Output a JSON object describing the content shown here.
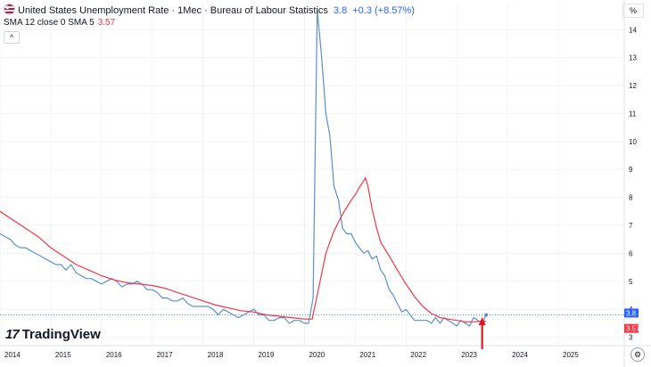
{
  "header": {
    "title": "United States Unemployment Rate · 1Mec · Bureau of Labour Statistics",
    "last_value": "3.8",
    "change": "+0.3 (+8.57%)"
  },
  "indicator": {
    "label": "SMA 12 close 0 SMA 5",
    "value": "3.57"
  },
  "collapse_label": "^",
  "percent_label": "%",
  "logo": {
    "mark": "17",
    "text": "TradingView"
  },
  "settings_icon": "settings-icon",
  "colors": {
    "price": "#5b8fd0",
    "sma": "#f23645",
    "price_label_bg": "#2962ff",
    "sma_label_bg": "#f23645",
    "arrow": "#e0151e"
  },
  "chart_data": {
    "type": "line",
    "x_tick_labels": [
      "2014",
      "2015",
      "2016",
      "2017",
      "2018",
      "2019",
      "2020",
      "2021",
      "2022",
      "2023",
      "2024",
      "2025"
    ],
    "y_tick_labels": [
      "3",
      "4",
      "5",
      "6",
      "7",
      "8",
      "9",
      "10",
      "11",
      "12",
      "13",
      "14"
    ],
    "ylim": [
      2.7,
      14.9
    ],
    "xlim": [
      2014.0,
      2026.3
    ],
    "price_label": "3.8",
    "sma_label": "3.57",
    "series": [
      {
        "key": "unemployment_rate",
        "points": [
          [
            2014.0,
            6.7
          ],
          [
            2014.1,
            6.6
          ],
          [
            2014.2,
            6.5
          ],
          [
            2014.3,
            6.3
          ],
          [
            2014.4,
            6.2
          ],
          [
            2014.5,
            6.2
          ],
          [
            2014.6,
            6.1
          ],
          [
            2014.7,
            6.0
          ],
          [
            2014.8,
            5.9
          ],
          [
            2014.9,
            5.8
          ],
          [
            2015.0,
            5.7
          ],
          [
            2015.1,
            5.6
          ],
          [
            2015.2,
            5.6
          ],
          [
            2015.3,
            5.4
          ],
          [
            2015.4,
            5.6
          ],
          [
            2015.5,
            5.3
          ],
          [
            2015.6,
            5.2
          ],
          [
            2015.7,
            5.1
          ],
          [
            2015.8,
            5.1
          ],
          [
            2015.9,
            5.0
          ],
          [
            2016.0,
            4.9
          ],
          [
            2016.1,
            5.0
          ],
          [
            2016.2,
            5.1
          ],
          [
            2016.3,
            5.0
          ],
          [
            2016.4,
            4.8
          ],
          [
            2016.5,
            4.9
          ],
          [
            2016.6,
            4.9
          ],
          [
            2016.7,
            5.0
          ],
          [
            2016.8,
            4.9
          ],
          [
            2016.9,
            4.7
          ],
          [
            2017.0,
            4.7
          ],
          [
            2017.1,
            4.6
          ],
          [
            2017.2,
            4.4
          ],
          [
            2017.3,
            4.4
          ],
          [
            2017.4,
            4.3
          ],
          [
            2017.5,
            4.3
          ],
          [
            2017.6,
            4.4
          ],
          [
            2017.7,
            4.2
          ],
          [
            2017.8,
            4.1
          ],
          [
            2017.9,
            4.1
          ],
          [
            2018.0,
            4.1
          ],
          [
            2018.1,
            4.1
          ],
          [
            2018.2,
            4.0
          ],
          [
            2018.3,
            3.8
          ],
          [
            2018.4,
            4.0
          ],
          [
            2018.5,
            3.9
          ],
          [
            2018.6,
            3.8
          ],
          [
            2018.7,
            3.7
          ],
          [
            2018.8,
            3.8
          ],
          [
            2018.9,
            3.9
          ],
          [
            2019.0,
            4.0
          ],
          [
            2019.1,
            3.8
          ],
          [
            2019.2,
            3.8
          ],
          [
            2019.3,
            3.6
          ],
          [
            2019.4,
            3.6
          ],
          [
            2019.5,
            3.7
          ],
          [
            2019.6,
            3.7
          ],
          [
            2019.7,
            3.5
          ],
          [
            2019.8,
            3.6
          ],
          [
            2019.9,
            3.6
          ],
          [
            2020.0,
            3.5
          ],
          [
            2020.08,
            3.5
          ],
          [
            2020.17,
            4.4
          ],
          [
            2020.25,
            14.7
          ],
          [
            2020.33,
            13.2
          ],
          [
            2020.42,
            11.0
          ],
          [
            2020.5,
            10.2
          ],
          [
            2020.58,
            8.4
          ],
          [
            2020.67,
            7.9
          ],
          [
            2020.75,
            6.9
          ],
          [
            2020.83,
            6.7
          ],
          [
            2020.92,
            6.7
          ],
          [
            2021.0,
            6.4
          ],
          [
            2021.08,
            6.2
          ],
          [
            2021.17,
            6.0
          ],
          [
            2021.25,
            6.1
          ],
          [
            2021.33,
            5.8
          ],
          [
            2021.42,
            5.9
          ],
          [
            2021.5,
            5.4
          ],
          [
            2021.58,
            5.2
          ],
          [
            2021.67,
            4.7
          ],
          [
            2021.75,
            4.5
          ],
          [
            2021.83,
            4.2
          ],
          [
            2021.92,
            3.9
          ],
          [
            2022.0,
            4.0
          ],
          [
            2022.08,
            3.8
          ],
          [
            2022.17,
            3.6
          ],
          [
            2022.25,
            3.6
          ],
          [
            2022.33,
            3.6
          ],
          [
            2022.42,
            3.6
          ],
          [
            2022.5,
            3.5
          ],
          [
            2022.58,
            3.7
          ],
          [
            2022.67,
            3.5
          ],
          [
            2022.75,
            3.7
          ],
          [
            2022.83,
            3.6
          ],
          [
            2022.92,
            3.5
          ],
          [
            2023.0,
            3.4
          ],
          [
            2023.08,
            3.6
          ],
          [
            2023.17,
            3.5
          ],
          [
            2023.25,
            3.4
          ],
          [
            2023.33,
            3.7
          ],
          [
            2023.42,
            3.6
          ],
          [
            2023.5,
            3.5
          ],
          [
            2023.58,
            3.8
          ]
        ]
      },
      {
        "key": "sma",
        "points": [
          [
            2014.0,
            7.5
          ],
          [
            2014.25,
            7.2
          ],
          [
            2014.5,
            6.9
          ],
          [
            2014.75,
            6.6
          ],
          [
            2015.0,
            6.2
          ],
          [
            2015.25,
            5.9
          ],
          [
            2015.5,
            5.6
          ],
          [
            2015.75,
            5.4
          ],
          [
            2016.0,
            5.2
          ],
          [
            2016.25,
            5.05
          ],
          [
            2016.5,
            4.95
          ],
          [
            2016.75,
            4.9
          ],
          [
            2017.0,
            4.85
          ],
          [
            2017.25,
            4.75
          ],
          [
            2017.5,
            4.6
          ],
          [
            2017.75,
            4.45
          ],
          [
            2018.0,
            4.3
          ],
          [
            2018.25,
            4.15
          ],
          [
            2018.5,
            4.05
          ],
          [
            2018.75,
            3.95
          ],
          [
            2019.0,
            3.9
          ],
          [
            2019.25,
            3.8
          ],
          [
            2019.5,
            3.75
          ],
          [
            2019.75,
            3.7
          ],
          [
            2020.0,
            3.65
          ],
          [
            2020.15,
            3.65
          ],
          [
            2020.25,
            4.5
          ],
          [
            2020.33,
            5.2
          ],
          [
            2020.42,
            6.0
          ],
          [
            2020.58,
            6.8
          ],
          [
            2020.75,
            7.4
          ],
          [
            2020.92,
            7.9
          ],
          [
            2021.0,
            8.1
          ],
          [
            2021.08,
            8.35
          ],
          [
            2021.17,
            8.6
          ],
          [
            2021.2,
            8.7
          ],
          [
            2021.25,
            8.4
          ],
          [
            2021.33,
            7.6
          ],
          [
            2021.42,
            6.9
          ],
          [
            2021.5,
            6.4
          ],
          [
            2021.67,
            5.9
          ],
          [
            2021.83,
            5.4
          ],
          [
            2022.0,
            4.9
          ],
          [
            2022.17,
            4.45
          ],
          [
            2022.33,
            4.1
          ],
          [
            2022.5,
            3.85
          ],
          [
            2022.67,
            3.7
          ],
          [
            2022.83,
            3.65
          ],
          [
            2023.0,
            3.6
          ],
          [
            2023.17,
            3.55
          ],
          [
            2023.33,
            3.55
          ],
          [
            2023.5,
            3.57
          ],
          [
            2023.58,
            3.57
          ]
        ]
      }
    ],
    "axis_label_formatting": "right price scale, bottom time scale"
  }
}
